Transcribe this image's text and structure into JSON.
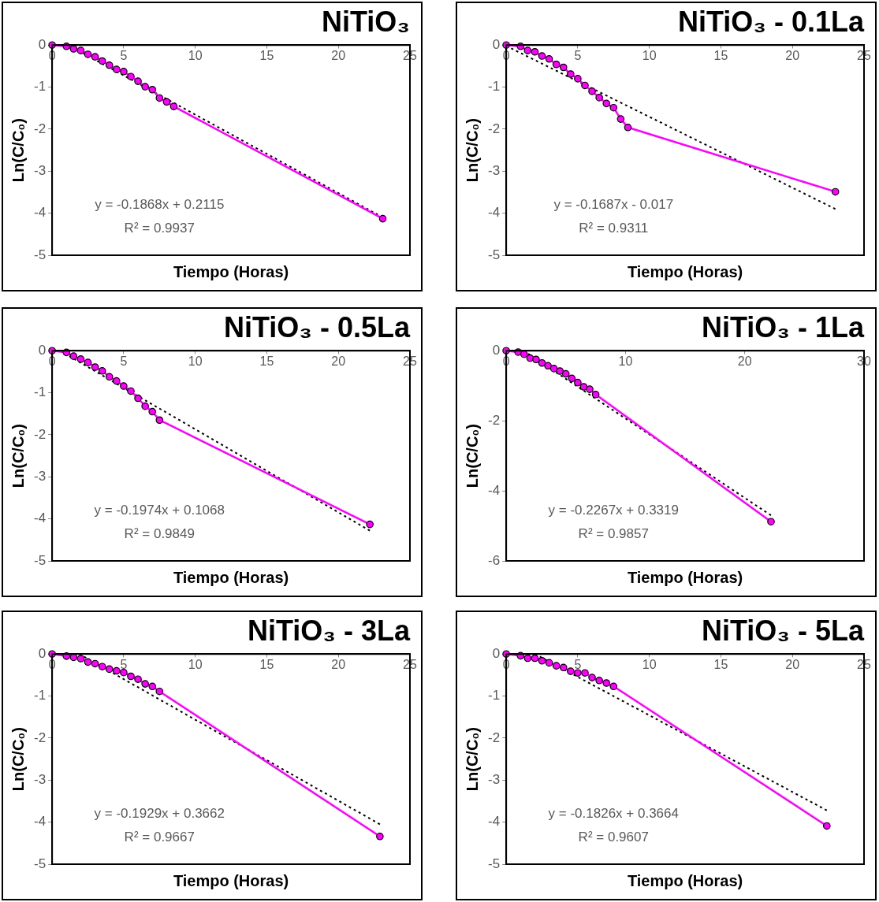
{
  "chart_data": [
    {
      "type": "line",
      "title": "NiTiO₃",
      "xlabel": "Tiempo (Horas)",
      "ylabel": "Ln(C/C₀)",
      "xlim": [
        0,
        25
      ],
      "xticks": [
        0,
        5,
        10,
        15,
        20,
        25
      ],
      "ylim": [
        -5,
        0
      ],
      "yticks": [
        0,
        -1,
        -2,
        -3,
        -4,
        -5
      ],
      "grid": false,
      "legend": false,
      "annotations": [
        "y = -0.1868x + 0.2115",
        "R² = 0.9937"
      ],
      "series": [
        {
          "color": "#ff00ff",
          "marker": "circle",
          "x": [
            0,
            1,
            1.5,
            2,
            2.5,
            3,
            3.5,
            4,
            4.5,
            5,
            5.5,
            6,
            6.5,
            7,
            7.5,
            8,
            8.5,
            23.1
          ],
          "values": [
            0,
            -0.03,
            -0.09,
            -0.13,
            -0.22,
            -0.28,
            -0.38,
            -0.48,
            -0.58,
            -0.63,
            -0.75,
            -0.86,
            -0.99,
            -1.06,
            -1.26,
            -1.35,
            -1.46,
            -4.13
          ]
        },
        {
          "color": "#000000",
          "marker": "none",
          "line_style": "dotted",
          "x": [
            1.13,
            23.1
          ],
          "values": [
            0,
            -4.1
          ]
        }
      ]
    },
    {
      "type": "line",
      "title": "NiTiO₃ - 0.1La",
      "xlabel": "Tiempo (Horas)",
      "ylabel": "Ln(C/C₀)",
      "xlim": [
        0,
        25
      ],
      "xticks": [
        0,
        5,
        10,
        15,
        20,
        25
      ],
      "ylim": [
        -5,
        0
      ],
      "yticks": [
        0,
        -1,
        -2,
        -3,
        -4,
        -5
      ],
      "grid": false,
      "legend": false,
      "annotations": [
        "y = -0.1687x - 0.017",
        "R² = 0.9311"
      ],
      "series": [
        {
          "color": "#ff00ff",
          "marker": "circle",
          "x": [
            0,
            1,
            1.5,
            2,
            2.5,
            3,
            3.5,
            4,
            4.5,
            5,
            5.5,
            6,
            6.5,
            7,
            7.5,
            8,
            8.5,
            23
          ],
          "values": [
            0,
            -0.03,
            -0.13,
            -0.16,
            -0.26,
            -0.33,
            -0.46,
            -0.53,
            -0.69,
            -0.8,
            -0.96,
            -1.1,
            -1.25,
            -1.39,
            -1.49,
            -1.76,
            -1.96,
            -3.49
          ]
        },
        {
          "color": "#000000",
          "marker": "none",
          "line_style": "dotted",
          "x": [
            0,
            23
          ],
          "values": [
            -0.02,
            -3.9
          ]
        }
      ]
    },
    {
      "type": "line",
      "title": "NiTiO₃ - 0.5La",
      "xlabel": "Tiempo (Horas)",
      "ylabel": "Ln(C/C₀)",
      "xlim": [
        0,
        25
      ],
      "xticks": [
        0,
        5,
        10,
        15,
        20,
        25
      ],
      "ylim": [
        -5,
        0
      ],
      "yticks": [
        0,
        -1,
        -2,
        -3,
        -4,
        -5
      ],
      "grid": false,
      "legend": false,
      "annotations": [
        "y = -0.1974x + 0.1068",
        "R² = 0.9849"
      ],
      "series": [
        {
          "color": "#ff00ff",
          "marker": "circle",
          "x": [
            0,
            1,
            1.5,
            2,
            2.5,
            3,
            3.5,
            4,
            4.5,
            5,
            5.5,
            6,
            6.5,
            7,
            7.5,
            22.2
          ],
          "values": [
            0,
            -0.04,
            -0.13,
            -0.2,
            -0.28,
            -0.39,
            -0.48,
            -0.62,
            -0.72,
            -0.84,
            -0.96,
            -1.13,
            -1.32,
            -1.45,
            -1.65,
            -4.13
          ]
        },
        {
          "color": "#000000",
          "marker": "none",
          "line_style": "dotted",
          "x": [
            0.54,
            22.2
          ],
          "values": [
            0,
            -4.28
          ]
        }
      ]
    },
    {
      "type": "line",
      "title": "NiTiO₃ - 1La",
      "xlabel": "Tiempo (Horas)",
      "ylabel": "Ln(C/C₀)",
      "xlim": [
        0,
        30
      ],
      "xticks": [
        0,
        10,
        20,
        30
      ],
      "ylim": [
        -6,
        0
      ],
      "yticks": [
        0,
        -2,
        -4,
        -6
      ],
      "grid": false,
      "legend": false,
      "annotations": [
        "y = -0.2267x + 0.3319",
        "R² = 0.9857"
      ],
      "series": [
        {
          "color": "#ff00ff",
          "marker": "circle",
          "x": [
            0,
            1,
            1.5,
            2,
            2.5,
            3,
            3.5,
            4,
            4.5,
            5,
            5.5,
            6,
            6.5,
            7,
            7.5,
            22.2
          ],
          "values": [
            0,
            -0.04,
            -0.1,
            -0.21,
            -0.25,
            -0.35,
            -0.43,
            -0.51,
            -0.58,
            -0.66,
            -0.79,
            -0.91,
            -1.03,
            -1.1,
            -1.25,
            -4.88
          ]
        },
        {
          "color": "#000000",
          "marker": "none",
          "line_style": "dotted",
          "x": [
            1.46,
            22.2
          ],
          "values": [
            0,
            -4.7
          ]
        }
      ]
    },
    {
      "type": "line",
      "title": "NiTiO₃ - 3La",
      "xlabel": "Tiempo (Horas)",
      "ylabel": "Ln(C/C₀)",
      "xlim": [
        0,
        25
      ],
      "xticks": [
        0,
        5,
        10,
        15,
        20,
        25
      ],
      "ylim": [
        -5,
        0
      ],
      "yticks": [
        0,
        -1,
        -2,
        -3,
        -4,
        -5
      ],
      "grid": false,
      "legend": false,
      "annotations": [
        "y = -0.1929x + 0.3662",
        "R² = 0.9667"
      ],
      "series": [
        {
          "color": "#ff00ff",
          "marker": "circle",
          "x": [
            0,
            1,
            1.5,
            2,
            2.5,
            3,
            3.5,
            4,
            4.5,
            5,
            5.5,
            6,
            6.5,
            7,
            7.5,
            22.9
          ],
          "values": [
            0,
            -0.05,
            -0.08,
            -0.11,
            -0.19,
            -0.23,
            -0.3,
            -0.36,
            -0.4,
            -0.44,
            -0.53,
            -0.6,
            -0.71,
            -0.77,
            -0.89,
            -4.34
          ]
        },
        {
          "color": "#000000",
          "marker": "none",
          "line_style": "dotted",
          "x": [
            1.9,
            22.9
          ],
          "values": [
            0,
            -4.05
          ]
        }
      ]
    },
    {
      "type": "line",
      "title": "NiTiO₃ - 5La",
      "xlabel": "Tiempo (Horas)",
      "ylabel": "Ln(C/C₀)",
      "xlim": [
        0,
        25
      ],
      "xticks": [
        0,
        5,
        10,
        15,
        20,
        25
      ],
      "ylim": [
        -5,
        0
      ],
      "yticks": [
        0,
        -1,
        -2,
        -3,
        -4,
        -5
      ],
      "grid": false,
      "legend": false,
      "annotations": [
        "y = -0.1826x + 0.3664",
        "R² = 0.9607"
      ],
      "series": [
        {
          "color": "#ff00ff",
          "marker": "circle",
          "x": [
            0,
            1,
            1.5,
            2,
            2.5,
            3,
            3.5,
            4,
            4.5,
            5,
            5.5,
            6,
            6.5,
            7,
            7.5,
            22.4
          ],
          "values": [
            0,
            -0.04,
            -0.1,
            -0.1,
            -0.16,
            -0.21,
            -0.28,
            -0.32,
            -0.41,
            -0.45,
            -0.45,
            -0.56,
            -0.63,
            -0.69,
            -0.77,
            -4.09
          ]
        },
        {
          "color": "#000000",
          "marker": "none",
          "line_style": "dotted",
          "x": [
            2.01,
            22.4
          ],
          "values": [
            0,
            -3.72
          ]
        }
      ]
    }
  ]
}
